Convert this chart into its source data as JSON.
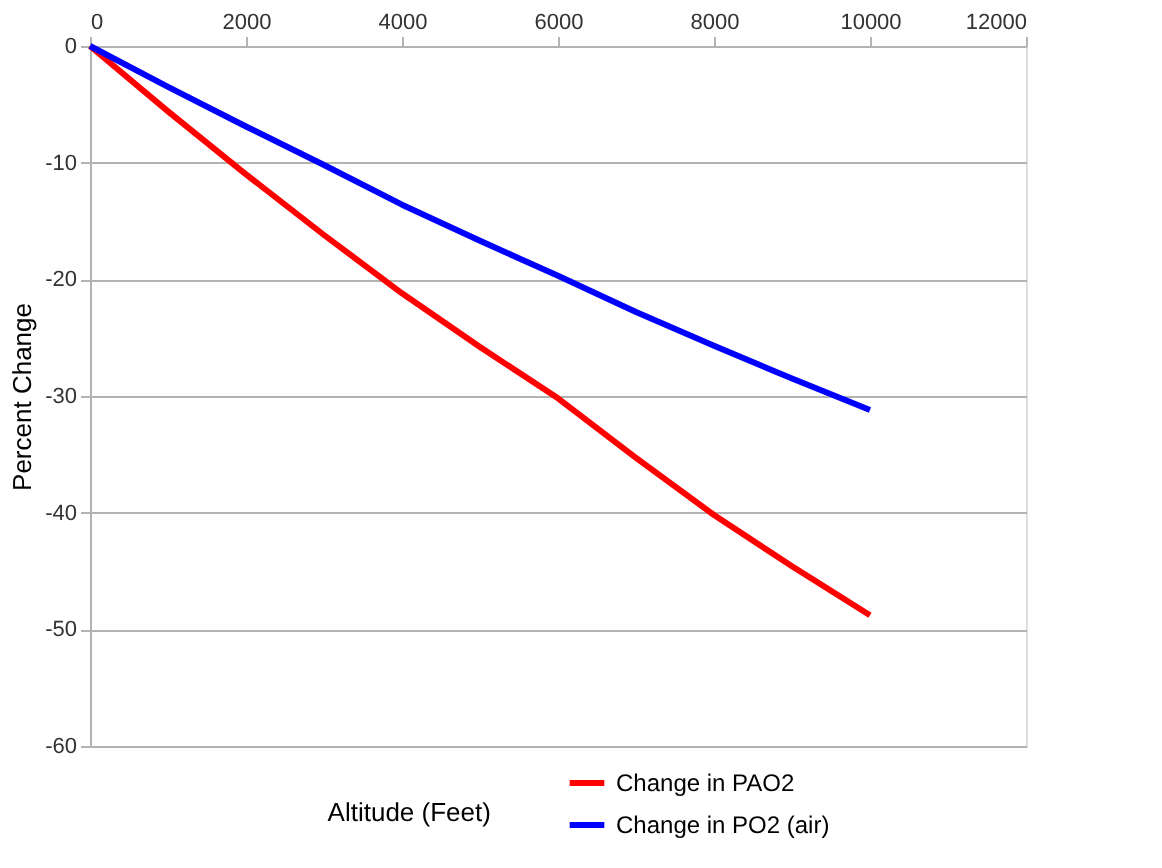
{
  "chart_data": {
    "type": "line",
    "xlabel": "Altitude (Feet)",
    "ylabel": "Percent Change",
    "x": [
      0,
      1000,
      2000,
      3000,
      4000,
      5000,
      6000,
      7000,
      8000,
      9000,
      10000
    ],
    "series": [
      {
        "name": "Change in PAO2",
        "color": "#ff0000",
        "values": [
          0,
          -5.6,
          -11,
          -16.2,
          -21.2,
          -25.8,
          -30.2,
          -35.3,
          -40.2,
          -44.6,
          -48.8
        ]
      },
      {
        "name": "Change in PO2 (air)",
        "color": "#0000ff",
        "values": [
          0,
          -3.5,
          -6.9,
          -10.2,
          -13.6,
          -16.7,
          -19.7,
          -22.8,
          -25.7,
          -28.5,
          -31.2
        ]
      }
    ],
    "xlim": [
      0,
      12000
    ],
    "xticks": [
      0,
      2000,
      4000,
      6000,
      8000,
      10000,
      12000
    ],
    "ylim": [
      -60,
      0
    ],
    "yticks": [
      -60,
      -50,
      -40,
      -30,
      -20,
      -10,
      0
    ],
    "grid": "y",
    "legend": "bottom right",
    "marker": "none",
    "line_style": "solid"
  }
}
